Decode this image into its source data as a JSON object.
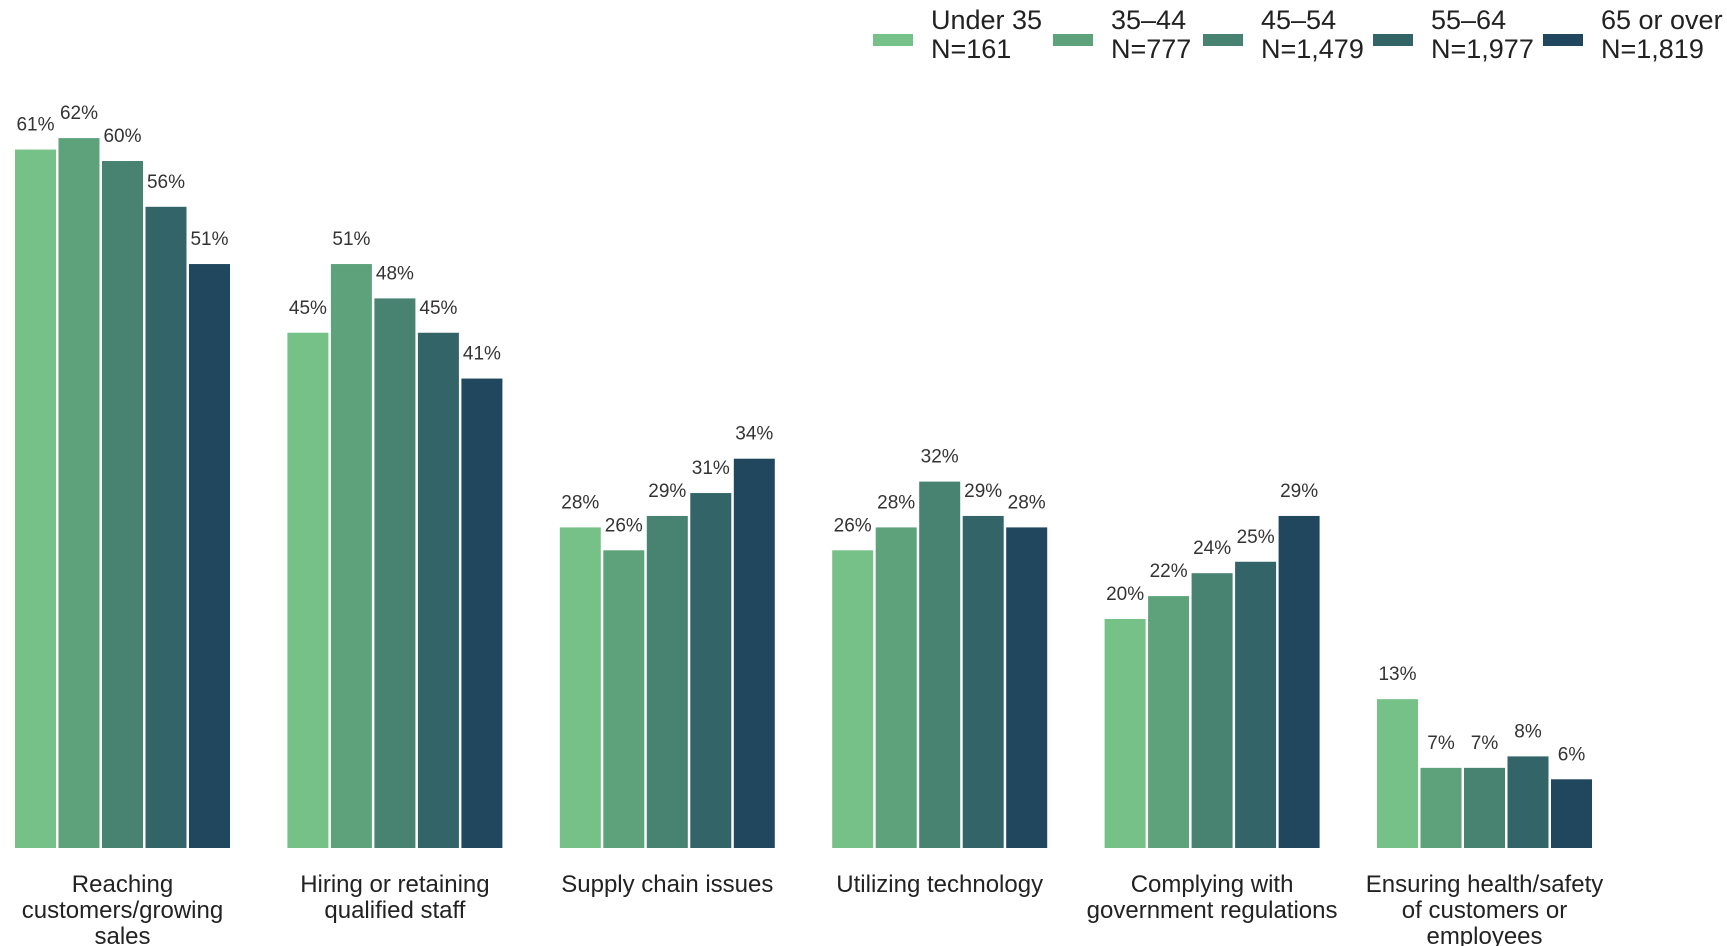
{
  "chart_data": {
    "type": "bar",
    "title": "",
    "xlabel": "",
    "ylabel": "",
    "ylim": [
      0,
      70
    ],
    "grid": false,
    "legend_position": "top-right",
    "value_suffix": "%",
    "categories": [
      [
        "Reaching",
        "customers/growing",
        "sales"
      ],
      [
        "Hiring or retaining",
        "qualified staff"
      ],
      [
        "Supply chain issues"
      ],
      [
        "Utilizing technology"
      ],
      [
        "Complying with",
        "government regulations"
      ],
      [
        "Ensuring health/safety",
        "of customers or",
        "employees"
      ]
    ],
    "series": [
      {
        "name": "Under 35",
        "n": "N=161",
        "color": "#76c187",
        "values": [
          61,
          45,
          28,
          26,
          20,
          13
        ]
      },
      {
        "name": "35–44",
        "n": "N=777",
        "color": "#5da27a",
        "values": [
          62,
          51,
          26,
          28,
          22,
          7
        ]
      },
      {
        "name": "45–54",
        "n": "N=1,479",
        "color": "#488271",
        "values": [
          60,
          48,
          29,
          32,
          24,
          7
        ]
      },
      {
        "name": "55–64",
        "n": "N=1,977",
        "color": "#336468",
        "values": [
          56,
          45,
          31,
          29,
          25,
          8
        ]
      },
      {
        "name": "65 or over",
        "n": "N=1,819",
        "color": "#20475e",
        "values": [
          51,
          41,
          34,
          28,
          29,
          6
        ]
      }
    ]
  }
}
